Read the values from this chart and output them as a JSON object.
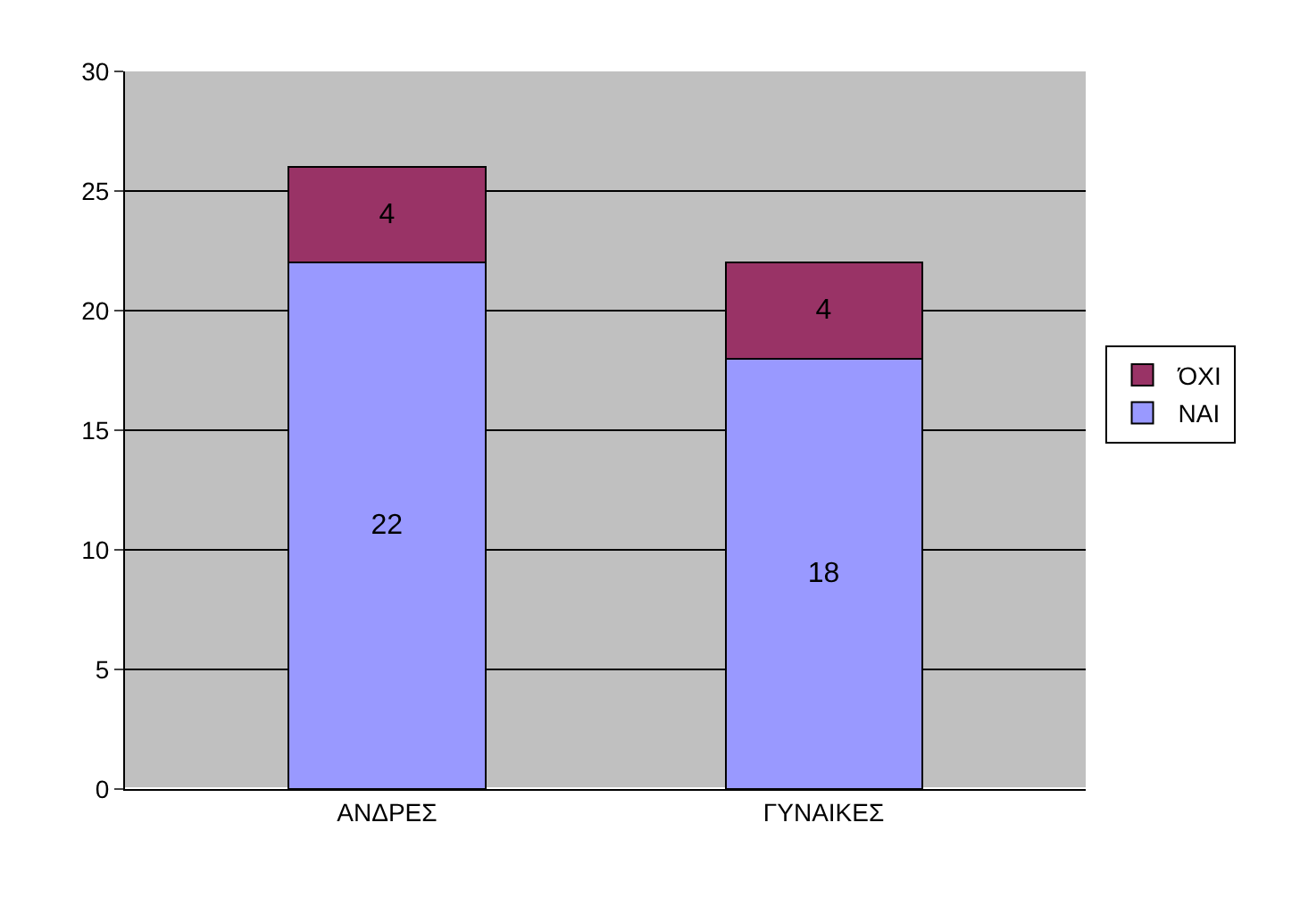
{
  "chart_data": {
    "type": "bar",
    "stacked": true,
    "categories": [
      "ΑΝΔΡΕΣ",
      "ΓΥΝΑΙΚΕΣ"
    ],
    "series": [
      {
        "name": "ΝΑΙ",
        "color": "#9999ff",
        "values": [
          22,
          18
        ]
      },
      {
        "name": "ΌΧΙ",
        "color": "#993366",
        "values": [
          4,
          4
        ]
      }
    ],
    "ylim": [
      0,
      30
    ],
    "yticks": [
      0,
      5,
      10,
      15,
      20,
      25,
      30
    ],
    "grid": "y",
    "legend": "right",
    "data_labels": true
  }
}
